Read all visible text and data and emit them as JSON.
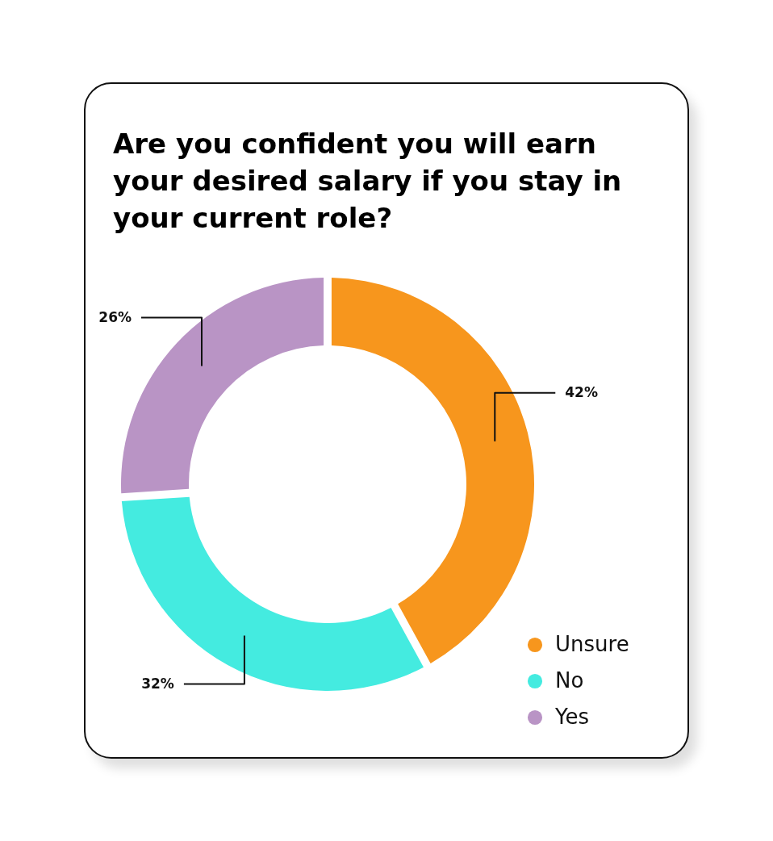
{
  "chart_data": {
    "type": "donut",
    "title": "Are you confident you will earn your desired salary if you stay in your current role?",
    "categories": [
      "Unsure",
      "No",
      "Yes"
    ],
    "values": [
      42,
      32,
      26
    ],
    "colors": [
      "#f7961d",
      "#44ebe0",
      "#b994c5"
    ],
    "value_labels": [
      "42%",
      "32%",
      "26%"
    ],
    "legend": "bottom right"
  }
}
